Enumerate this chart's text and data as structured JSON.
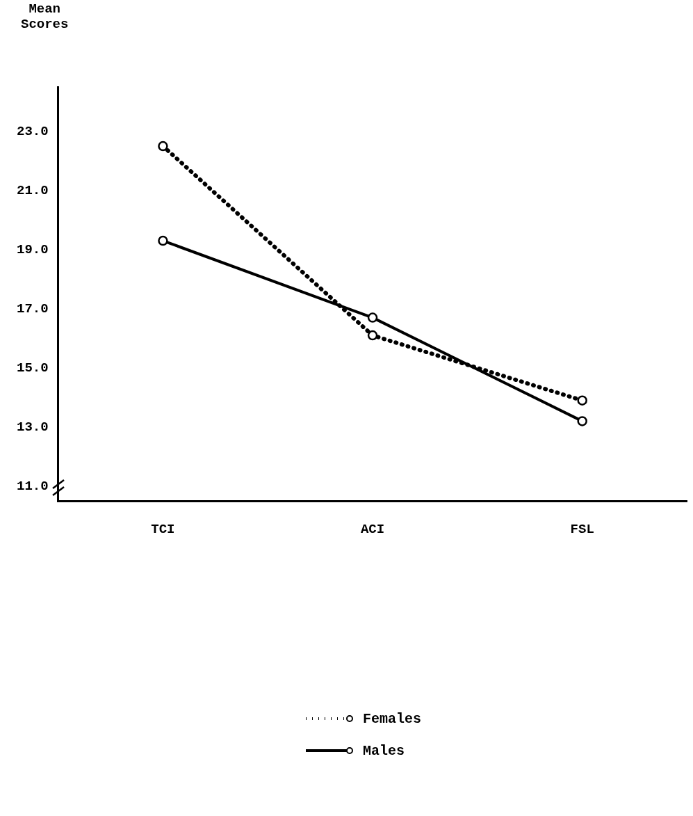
{
  "chart_data": {
    "type": "line",
    "ylabel": "Mean Scores",
    "categories": [
      "TCI",
      "ACI",
      "FSL"
    ],
    "series": [
      {
        "name": "Females",
        "color": "#000000",
        "values": [
          22.5,
          16.1,
          13.9
        ],
        "line_style": "dotted"
      },
      {
        "name": "Males",
        "color": "#000000",
        "values": [
          19.3,
          16.7,
          13.2
        ],
        "line_style": "solid"
      }
    ],
    "ylim": [
      10.5,
      24.5
    ],
    "yticks": [
      {
        "value": 11,
        "label": "11.0"
      },
      {
        "value": 13,
        "label": "13.0"
      },
      {
        "value": 15,
        "label": "15.0"
      },
      {
        "value": 17,
        "label": "17.0"
      },
      {
        "value": 19,
        "label": "19.0"
      },
      {
        "value": 21,
        "label": "21.0"
      },
      {
        "value": 23,
        "label": "23.0"
      }
    ],
    "grid": false,
    "legend": "bottom",
    "marker": "circle"
  }
}
